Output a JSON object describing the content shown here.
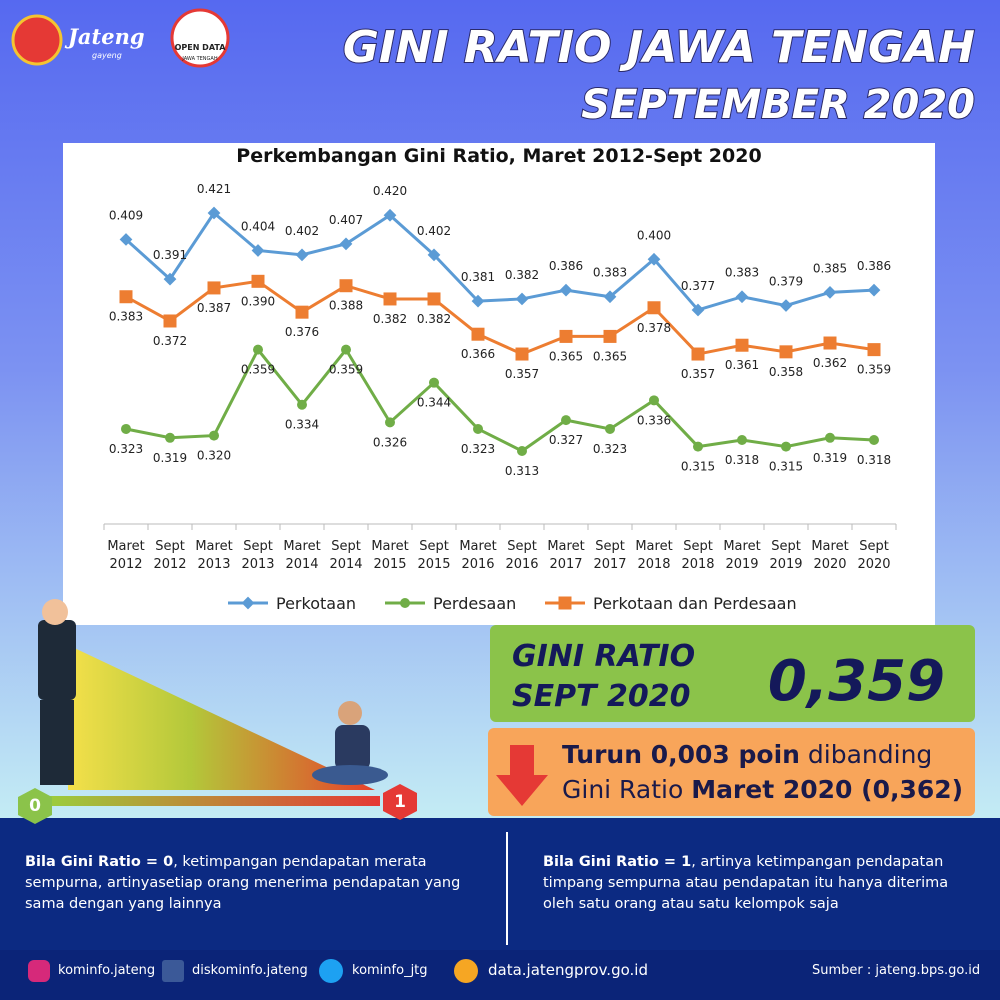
{
  "chart_data": {
    "type": "line",
    "title": "Perkembangan Gini Ratio, Maret 2012-Sept 2020",
    "categories": [
      "Maret 2012",
      "Sept 2012",
      "Maret 2013",
      "Sept 2013",
      "Maret 2014",
      "Sept 2014",
      "Maret 2015",
      "Sept 2015",
      "Maret 2016",
      "Sept 2016",
      "Maret 2017",
      "Sept 2017",
      "Maret 2018",
      "Sept 2018",
      "Maret 2019",
      "Sept 2019",
      "Maret 2020",
      "Sept 2020"
    ],
    "series": [
      {
        "name": "Perkotaan",
        "color": "#5b9bd5",
        "values": [
          0.409,
          0.391,
          0.421,
          0.404,
          0.402,
          0.407,
          0.42,
          0.402,
          0.381,
          0.382,
          0.386,
          0.383,
          0.4,
          0.377,
          0.383,
          0.379,
          0.385,
          0.386
        ],
        "value_labels": [
          "0.409",
          "0.391",
          "0.421",
          "0.404",
          "0.402",
          "0.407",
          "0.420",
          "0.402",
          "0.381",
          "0.382",
          "0.386",
          "0.383",
          "0.400",
          "0.377",
          "0.383",
          "0.379",
          "0.385",
          "0.386"
        ]
      },
      {
        "name": "Perdesaan",
        "color": "#70ad47",
        "values": [
          0.323,
          0.319,
          0.32,
          0.359,
          0.334,
          0.359,
          0.326,
          0.344,
          0.323,
          0.313,
          0.327,
          0.323,
          0.336,
          0.315,
          0.318,
          0.315,
          0.319,
          0.318
        ],
        "value_labels": [
          "0.323",
          "0.319",
          "0.320",
          "0.359",
          "0.334",
          "0.359",
          "0.326",
          "0.344",
          "0.323",
          "0.313",
          "0.327",
          "0.323",
          "0.336",
          "0.315",
          "0.318",
          "0.315",
          "0.319",
          "0.318"
        ]
      },
      {
        "name": "Perkotaan dan Perdesaan",
        "color": "#ed7d31",
        "values": [
          0.383,
          0.372,
          0.387,
          0.39,
          0.376,
          0.388,
          0.382,
          0.382,
          0.366,
          0.357,
          0.365,
          0.365,
          0.378,
          0.357,
          0.361,
          0.358,
          0.362,
          0.359
        ],
        "value_labels": [
          "0.383",
          "0.372",
          "0.387",
          "0.390",
          "0.376",
          "0.388",
          "0.382",
          "0.382",
          "0.366",
          "0.357",
          "0.365",
          "0.365",
          "0.378",
          "0.357",
          "0.361",
          "0.358",
          "0.362",
          "0.359"
        ]
      }
    ]
  },
  "header": {
    "title": "GINI RATIO JAWA TENGAH",
    "subtitle": "SEPTEMBER 2020",
    "logo_jateng": "Jateng",
    "logo_jateng_sub": "gayeng",
    "logo_opendata": "OPEN DATA",
    "logo_opendata_sub": "JAWA TENGAH"
  },
  "highlight": {
    "label_line1": "GINI RATIO",
    "label_line2": "SEPT 2020",
    "value": "0,359"
  },
  "change": {
    "line1_bold": "Turun 0,003 poin",
    "line1_rest": " dibanding",
    "line2_rest": "Gini Ratio ",
    "line2_bold": "Maret 2020 (0,362)"
  },
  "scale": {
    "min_label": "0",
    "max_label": "1"
  },
  "notes": [
    {
      "bold": "Bila Gini Ratio = 0",
      "text": ", ketimpangan pendapatan merata sempurna, artinyasetiap orang menerima pendapatan yang sama dengan yang lainnya"
    },
    {
      "bold": "Bila Gini Ratio = 1",
      "text": ", artinya ketimpangan pendapatan timpang sempurna atau pendapatan itu hanya diterima oleh satu orang atau satu kelompok saja"
    }
  ],
  "footer": {
    "instagram": "kominfo.jateng",
    "facebook": "diskominfo.jateng",
    "twitter": "kominfo_jtg",
    "website": "data.jatengprov.go.id",
    "source": "Sumber : jateng.bps.go.id"
  }
}
